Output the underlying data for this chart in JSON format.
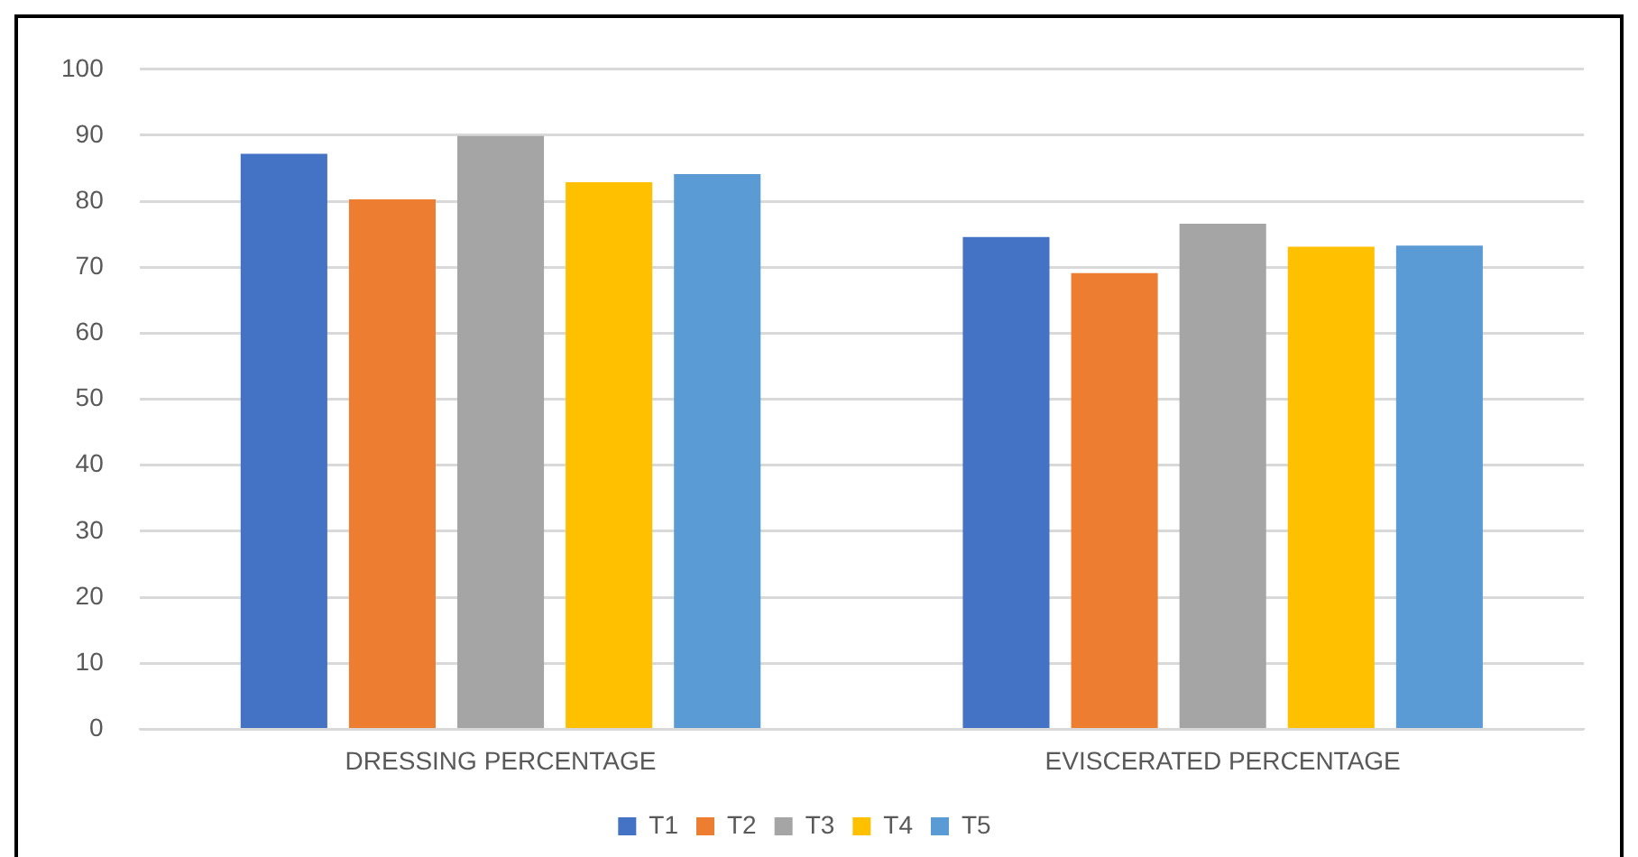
{
  "chart_data": {
    "type": "bar",
    "categories": [
      "DRESSING PERCENTAGE",
      "EVISCERATED PERCENTAGE"
    ],
    "series": [
      {
        "name": "T1",
        "color": "#4472c4",
        "values": [
          87.2,
          74.6
        ]
      },
      {
        "name": "T2",
        "color": "#ed7d31",
        "values": [
          80.3,
          69.1
        ]
      },
      {
        "name": "T3",
        "color": "#a5a5a5",
        "values": [
          89.9,
          76.6
        ]
      },
      {
        "name": "T4",
        "color": "#ffc000",
        "values": [
          82.9,
          73.1
        ]
      },
      {
        "name": "T5",
        "color": "#5b9bd5",
        "values": [
          84.1,
          73.3
        ]
      }
    ],
    "ylim": [
      0,
      100
    ],
    "yticks": [
      0,
      10,
      20,
      30,
      40,
      50,
      60,
      70,
      80,
      90,
      100
    ],
    "grid": "y",
    "legend": "bottom"
  }
}
